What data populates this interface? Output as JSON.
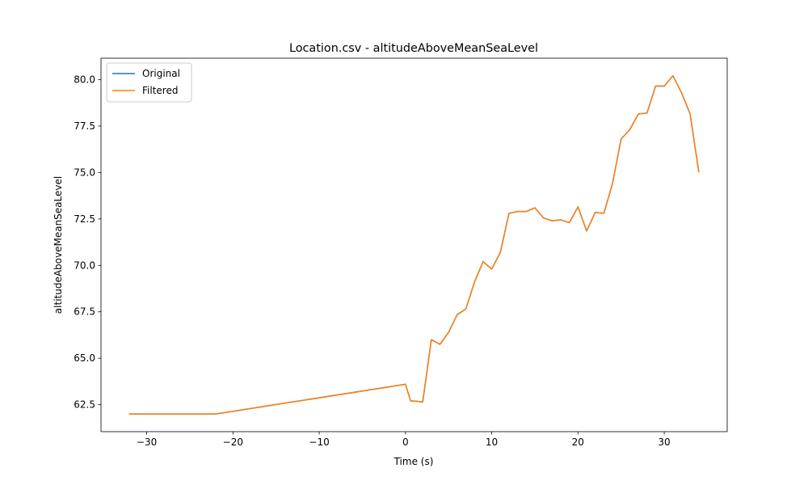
{
  "chart_data": {
    "type": "line",
    "title": "Location.csv - altitudeAboveMeanSeaLevel",
    "xlabel": "Time (s)",
    "ylabel": "altitudeAboveMeanSeaLevel",
    "xlim": [
      -35.3,
      37.3
    ],
    "ylim": [
      61.05,
      81.15
    ],
    "xticks": [
      -30,
      -20,
      -10,
      0,
      10,
      20,
      30
    ],
    "xtick_labels": [
      "−30",
      "−20",
      "−10",
      "0",
      "10",
      "20",
      "30"
    ],
    "yticks": [
      62.5,
      65.0,
      67.5,
      70.0,
      72.5,
      75.0,
      77.5,
      80.0
    ],
    "ytick_labels": [
      "62.5",
      "65.0",
      "67.5",
      "70.0",
      "72.5",
      "75.0",
      "77.5",
      "80.0"
    ],
    "grid": false,
    "legend_position": "top-left",
    "x": [
      -32,
      -22,
      0,
      0.6,
      1,
      2,
      3,
      4,
      5,
      6,
      7,
      8,
      9,
      10,
      11,
      12,
      13,
      14,
      15,
      16,
      17,
      18,
      19,
      20,
      21,
      22,
      23,
      24,
      25,
      26,
      27,
      28,
      29,
      30,
      31,
      32,
      33,
      34
    ],
    "series": [
      {
        "name": "Original",
        "color": "#1f77b4",
        "values": [
          62.0,
          62.0,
          63.6,
          62.7,
          62.7,
          62.65,
          66.0,
          65.75,
          66.4,
          67.35,
          67.65,
          69.1,
          70.2,
          69.8,
          70.7,
          72.8,
          72.9,
          72.9,
          73.1,
          72.55,
          72.4,
          72.45,
          72.3,
          73.15,
          71.85,
          72.85,
          72.8,
          74.4,
          76.8,
          77.3,
          78.15,
          78.2,
          79.65,
          79.65,
          80.2,
          79.3,
          78.15,
          75.05
        ]
      },
      {
        "name": "Filtered",
        "color": "#ff7f0e",
        "values": [
          62.0,
          62.0,
          63.6,
          62.7,
          62.7,
          62.65,
          66.0,
          65.75,
          66.4,
          67.35,
          67.65,
          69.1,
          70.2,
          69.8,
          70.7,
          72.8,
          72.9,
          72.9,
          73.1,
          72.55,
          72.4,
          72.45,
          72.3,
          73.15,
          71.85,
          72.85,
          72.8,
          74.4,
          76.8,
          77.3,
          78.15,
          78.2,
          79.65,
          79.65,
          80.2,
          79.3,
          78.15,
          75.05
        ]
      }
    ]
  }
}
